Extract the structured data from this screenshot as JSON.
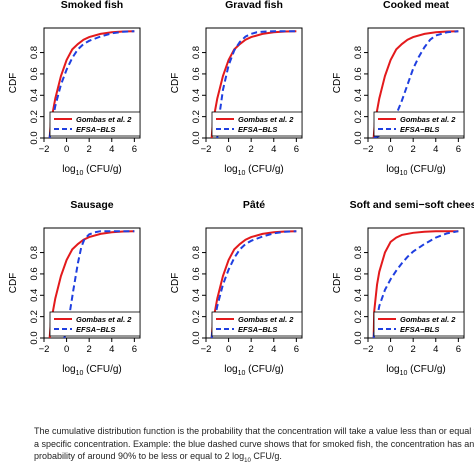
{
  "caption": {
    "line1": "The cumulative distribution function is the probability that the concentration will take a value less than or equal to",
    "line2": "a specific concentration. Example: the blue dashed curve shows that for smoked fish, the concentration has an",
    "line3_pre": "probability of around 90% to be less or equal to 2 log",
    "line3_sub": "10",
    "line3_post": " CFU/g."
  },
  "chart_data": [
    {
      "type": "line",
      "title": "Smoked fish",
      "ylabel": "CDF",
      "xlabel": "log10 (CFU/g)",
      "xlim": [
        -2,
        6.5
      ],
      "ylim": [
        0,
        1.03
      ],
      "xticks": [
        -2,
        0,
        2,
        4,
        6
      ],
      "yticks": [
        0.0,
        0.2,
        0.4,
        0.6,
        0.8
      ],
      "grid": false,
      "legend_position": "bottom-right",
      "series": [
        {
          "name": "Gombas et al. 2",
          "color": "#e31a1c",
          "style": "solid",
          "x": [
            -1.5,
            -1.4,
            -1.0,
            -0.5,
            0,
            0.5,
            1,
            1.5,
            2,
            3,
            4,
            5,
            6
          ],
          "y": [
            0,
            0.14,
            0.37,
            0.58,
            0.73,
            0.83,
            0.88,
            0.92,
            0.945,
            0.975,
            0.99,
            0.997,
            1.0
          ]
        },
        {
          "name": "EFSA−BLS",
          "color": "#1f3fe0",
          "style": "dashed",
          "x": [
            -1.5,
            -1.45,
            -1.0,
            -0.5,
            0,
            0.5,
            1,
            1.5,
            2,
            3,
            4,
            5,
            6
          ],
          "y": [
            0,
            0.05,
            0.3,
            0.5,
            0.64,
            0.75,
            0.83,
            0.88,
            0.91,
            0.95,
            0.98,
            0.995,
            1.0
          ]
        }
      ]
    },
    {
      "type": "line",
      "title": "Gravad fish",
      "ylabel": "CDF",
      "xlabel": "log10 (CFU/g)",
      "xlim": [
        -2,
        6.5
      ],
      "ylim": [
        0,
        1.03
      ],
      "xticks": [
        -2,
        0,
        2,
        4,
        6
      ],
      "yticks": [
        0.0,
        0.2,
        0.4,
        0.6,
        0.8
      ],
      "grid": false,
      "legend_position": "bottom-right",
      "series": [
        {
          "name": "Gombas et al. 2",
          "color": "#e31a1c",
          "style": "solid",
          "x": [
            -1.5,
            -1.4,
            -1.0,
            -0.5,
            0,
            0.5,
            1,
            1.5,
            2,
            3,
            4,
            5,
            6
          ],
          "y": [
            0,
            0.14,
            0.37,
            0.58,
            0.73,
            0.83,
            0.88,
            0.92,
            0.945,
            0.975,
            0.99,
            0.997,
            1.0
          ]
        },
        {
          "name": "EFSA−BLS",
          "color": "#1f3fe0",
          "style": "dashed",
          "x": [
            -1.0,
            -0.9,
            -0.5,
            0,
            0.5,
            1,
            1.5,
            2,
            2.5,
            3,
            4,
            5,
            6
          ],
          "y": [
            0,
            0.15,
            0.45,
            0.68,
            0.82,
            0.9,
            0.95,
            0.975,
            0.99,
            0.995,
            1.0,
            1.0,
            1.0
          ]
        }
      ]
    },
    {
      "type": "line",
      "title": "Cooked meat",
      "ylabel": "CDF",
      "xlabel": "log10 (CFU/g)",
      "xlim": [
        -2,
        6.5
      ],
      "ylim": [
        0,
        1.03
      ],
      "xticks": [
        -2,
        0,
        2,
        4,
        6
      ],
      "yticks": [
        0.0,
        0.2,
        0.4,
        0.6,
        0.8
      ],
      "grid": false,
      "legend_position": "bottom-right",
      "series": [
        {
          "name": "Gombas et al. 2",
          "color": "#e31a1c",
          "style": "solid",
          "x": [
            -1.5,
            -1.4,
            -1.0,
            -0.5,
            0,
            0.5,
            1,
            1.5,
            2,
            3,
            4,
            5,
            6
          ],
          "y": [
            0,
            0.14,
            0.37,
            0.58,
            0.73,
            0.83,
            0.88,
            0.92,
            0.945,
            0.975,
            0.99,
            0.997,
            1.0
          ]
        },
        {
          "name": "EFSA−BLS",
          "color": "#1f3fe0",
          "style": "dashed",
          "x": [
            -1.5,
            -1.0,
            -0.5,
            0,
            0.5,
            1,
            1.5,
            2,
            2.5,
            3,
            3.5,
            4,
            5,
            6
          ],
          "y": [
            0,
            0.02,
            0.06,
            0.12,
            0.22,
            0.35,
            0.5,
            0.65,
            0.76,
            0.85,
            0.92,
            0.96,
            0.99,
            1.0
          ]
        }
      ]
    },
    {
      "type": "line",
      "title": "Sausage",
      "ylabel": "CDF",
      "xlabel": "log10 (CFU/g)",
      "xlim": [
        -2,
        6.5
      ],
      "ylim": [
        0,
        1.03
      ],
      "xticks": [
        -2,
        0,
        2,
        4,
        6
      ],
      "yticks": [
        0.0,
        0.2,
        0.4,
        0.6,
        0.8
      ],
      "grid": false,
      "legend_position": "bottom-right",
      "series": [
        {
          "name": "Gombas et al. 2",
          "color": "#e31a1c",
          "style": "solid",
          "x": [
            -1.5,
            -1.4,
            -1.0,
            -0.5,
            0,
            0.5,
            1,
            1.5,
            2,
            3,
            4,
            5,
            6
          ],
          "y": [
            0,
            0.14,
            0.37,
            0.58,
            0.73,
            0.83,
            0.88,
            0.92,
            0.945,
            0.975,
            0.99,
            0.997,
            1.0
          ]
        },
        {
          "name": "EFSA−BLS",
          "color": "#1f3fe0",
          "style": "dashed",
          "x": [
            -0.2,
            0,
            0.3,
            0.6,
            1.0,
            1.3,
            1.6,
            2.0,
            2.5,
            3,
            4,
            6
          ],
          "y": [
            0,
            0.08,
            0.25,
            0.45,
            0.7,
            0.85,
            0.93,
            0.97,
            0.99,
            1.0,
            1.0,
            1.0
          ]
        }
      ]
    },
    {
      "type": "line",
      "title": "Pâté",
      "ylabel": "CDF",
      "xlabel": "log10 (CFU/g)",
      "xlim": [
        -2,
        6.5
      ],
      "ylim": [
        0,
        1.03
      ],
      "xticks": [
        -2,
        0,
        2,
        4,
        6
      ],
      "yticks": [
        0.0,
        0.2,
        0.4,
        0.6,
        0.8
      ],
      "grid": false,
      "legend_position": "bottom-right",
      "series": [
        {
          "name": "Gombas et al. 2",
          "color": "#e31a1c",
          "style": "solid",
          "x": [
            -1.5,
            -1.4,
            -1.0,
            -0.5,
            0,
            0.5,
            1,
            1.5,
            2,
            3,
            4,
            5,
            6
          ],
          "y": [
            0,
            0.14,
            0.37,
            0.58,
            0.73,
            0.83,
            0.88,
            0.92,
            0.945,
            0.975,
            0.99,
            0.997,
            1.0
          ]
        },
        {
          "name": "EFSA−BLS",
          "color": "#1f3fe0",
          "style": "dashed",
          "x": [
            -1.5,
            -1.45,
            -1.0,
            -0.5,
            0,
            0.5,
            1,
            1.5,
            2,
            3,
            4,
            5,
            6
          ],
          "y": [
            0,
            0.05,
            0.3,
            0.5,
            0.64,
            0.75,
            0.83,
            0.88,
            0.91,
            0.95,
            0.98,
            0.995,
            1.0
          ]
        }
      ]
    },
    {
      "type": "line",
      "title": "Soft and semi−soft cheese",
      "ylabel": "CDF",
      "xlabel": "log10 (CFU/g)",
      "xlim": [
        -2,
        6.5
      ],
      "ylim": [
        0,
        1.03
      ],
      "xticks": [
        -2,
        0,
        2,
        4,
        6
      ],
      "yticks": [
        0.0,
        0.2,
        0.4,
        0.6,
        0.8
      ],
      "grid": false,
      "legend_position": "bottom-right",
      "series": [
        {
          "name": "Gombas et al. 2",
          "color": "#e31a1c",
          "style": "solid",
          "x": [
            -1.5,
            -1.45,
            -1.2,
            -1.0,
            -0.5,
            0,
            0.5,
            1,
            2,
            3,
            4,
            6
          ],
          "y": [
            0,
            0.25,
            0.5,
            0.62,
            0.8,
            0.9,
            0.94,
            0.965,
            0.985,
            0.995,
            1.0,
            1.0
          ]
        },
        {
          "name": "EFSA−BLS",
          "color": "#1f3fe0",
          "style": "dashed",
          "x": [
            -1.5,
            -1.45,
            -1.0,
            -0.5,
            0,
            0.5,
            1,
            1.5,
            2,
            3,
            4,
            5,
            6
          ],
          "y": [
            0,
            0.05,
            0.3,
            0.45,
            0.55,
            0.63,
            0.7,
            0.76,
            0.81,
            0.88,
            0.94,
            0.98,
            1.0
          ]
        }
      ]
    }
  ]
}
